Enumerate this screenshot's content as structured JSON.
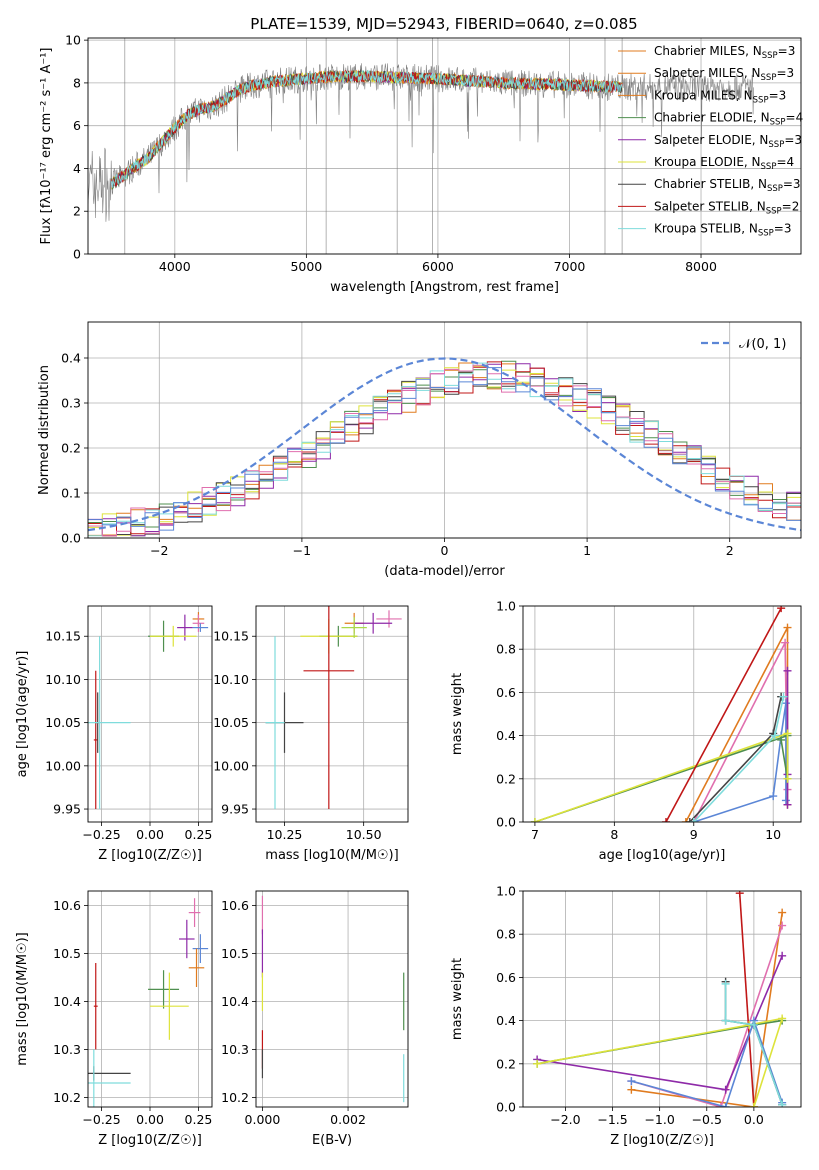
{
  "figure_title": "PLATE=1539, MJD=52943, FIBERID=0640, z=0.085",
  "colors": {
    "grey": "#808080",
    "orange": "#e07b1f",
    "green": "#4f8f4f",
    "purple": "#8e2aa8",
    "yellow": "#dde33b",
    "darkgrey": "#444444",
    "red": "#c01717",
    "cyan": "#7fdcdc",
    "blue": "#5b86d6",
    "pink": "#e06fae",
    "lime": "#a9d94a",
    "dashed": "#5b86d6"
  },
  "chart_data": [
    {
      "id": "spectrum",
      "type": "line",
      "title": "PLATE=1539, MJD=52943, FIBERID=0640, z=0.085",
      "xlabel": "wavelength [Angstrom, rest frame]",
      "ylabel": "Flux [fλ10⁻¹⁷ erg cm⁻² s⁻¹ A⁻¹]",
      "xlim": [
        3340,
        8760
      ],
      "ylim": [
        0,
        10.1
      ],
      "xticks": [
        "4000",
        "5000",
        "6000",
        "7000",
        "8000"
      ],
      "yticks": [
        "0",
        "2",
        "4",
        "6",
        "8",
        "10"
      ],
      "grid": true,
      "legend_position": "upper-right",
      "legend": [
        "Chabrier MILES, N_SSP=3",
        "Salpeter MILES, N_SSP=3",
        "Kroupa MILES, N_SSP=3",
        "Chabrier ELODIE, N_SSP=4",
        "Salpeter ELODIE, N_SSP=3",
        "Kroupa ELODIE, N_SSP=4",
        "Chabrier STELIB, N_SSP=3",
        "Salpeter STELIB, N_SSP=2",
        "Kroupa STELIB, N_SSP=3"
      ],
      "legend_display": [
        [
          "Chabrier MILES, N",
          "SSP",
          "=3"
        ],
        [
          "Salpeter MILES, N",
          "SSP",
          "=3"
        ],
        [
          "Kroupa MILES, N",
          "SSP",
          "=3"
        ],
        [
          "Chabrier ELODIE, N",
          "SSP",
          "=4"
        ],
        [
          "Salpeter ELODIE, N",
          "SSP",
          "=3"
        ],
        [
          "Kroupa ELODIE, N",
          "SSP",
          "=4"
        ],
        [
          "Chabrier STELIB, N",
          "SSP",
          "=3"
        ],
        [
          "Salpeter STELIB, N",
          "SSP",
          "=2"
        ],
        [
          "Kroupa STELIB, N",
          "SSP",
          "=3"
        ]
      ],
      "legend_colors": [
        "orange",
        "orange",
        "orange",
        "green",
        "purple",
        "yellow",
        "darkgrey",
        "red",
        "cyan"
      ],
      "continuum": {
        "x": [
          3520,
          3600,
          3700,
          3800,
          3900,
          4000,
          4100,
          4200,
          4300,
          4400,
          4500,
          4600,
          4800,
          5000,
          5200,
          5500,
          6000,
          6500,
          7000,
          7400
        ],
        "y": [
          3.3,
          3.6,
          4.1,
          4.5,
          5.2,
          5.9,
          6.5,
          6.8,
          6.9,
          7.3,
          7.7,
          7.9,
          8.1,
          8.2,
          8.3,
          8.3,
          8.2,
          8.0,
          7.9,
          7.8
        ]
      },
      "data_range": [
        3340,
        8400
      ],
      "model_range": [
        3520,
        7400
      ]
    },
    {
      "id": "residuals",
      "type": "histogram",
      "xlabel": "(data-model)/error",
      "ylabel": "Normed distribution",
      "xlim": [
        -2.5,
        2.5
      ],
      "ylim": [
        0,
        0.48
      ],
      "xticks": [
        "−2",
        "−1",
        "0",
        "1",
        "2"
      ],
      "yticks": [
        "0.0",
        "0.1",
        "0.2",
        "0.3",
        "0.4"
      ],
      "grid": true,
      "legend_position": "upper-right",
      "legend": [
        "𝒩(0, 1)"
      ],
      "bin_width": 0.1,
      "normal_curve": {
        "mean": 0,
        "sigma": 1
      }
    },
    {
      "id": "age-vs-Z",
      "type": "scatter",
      "xlabel": "Z [log10(Z/Z☉)]",
      "ylabel": "age [log10(age/yr)]",
      "xlim": [
        -0.32,
        0.32
      ],
      "ylim": [
        9.935,
        10.185
      ],
      "xticks": [
        "−0.25",
        "0.00",
        "0.25"
      ],
      "yticks": [
        "9.95",
        "10.00",
        "10.05",
        "10.10",
        "10.15"
      ],
      "grid": true,
      "points": [
        {
          "c": "orange",
          "x": 0.25,
          "y": 10.17,
          "ex": 0.03,
          "ey": 0.008
        },
        {
          "c": "pink",
          "x": 0.25,
          "y": 10.165,
          "ex": 0.03,
          "ey": 0.01
        },
        {
          "c": "blue",
          "x": 0.26,
          "y": 10.16,
          "ex": 0.04,
          "ey": 0.005
        },
        {
          "c": "purple",
          "x": 0.18,
          "y": 10.16,
          "ex": 0.04,
          "ey": 0.015
        },
        {
          "c": "green",
          "x": 0.07,
          "y": 10.15,
          "ex": 0.08,
          "ey": 0.018
        },
        {
          "c": "yellow",
          "x": 0.12,
          "y": 10.15,
          "ex": 0.12,
          "ey": 0.012
        },
        {
          "c": "red",
          "x": -0.28,
          "y": 10.03,
          "ex": 0.01,
          "ey": 0.08
        },
        {
          "c": "darkgrey",
          "x": -0.27,
          "y": 10.05,
          "ex": 0.01,
          "ey": 0.035
        },
        {
          "c": "cyan",
          "x": -0.26,
          "y": 10.05,
          "ex": 0.16,
          "ey": 0.1
        }
      ]
    },
    {
      "id": "age-vs-mass",
      "type": "scatter",
      "xlabel": "mass [log10(M/M☉)]",
      "ylabel": "",
      "xlim": [
        10.16,
        10.64
      ],
      "ylim": [
        9.935,
        10.185
      ],
      "xticks": [
        "10.25",
        "10.50"
      ],
      "yticks": [
        "9.95",
        "10.00",
        "10.05",
        "10.10",
        "10.15"
      ],
      "grid": true,
      "points": [
        {
          "c": "orange",
          "x": 10.47,
          "y": 10.165,
          "ex": 0.03,
          "ey": 0.012
        },
        {
          "c": "pink",
          "x": 10.58,
          "y": 10.17,
          "ex": 0.04,
          "ey": 0.01
        },
        {
          "c": "purple",
          "x": 10.53,
          "y": 10.165,
          "ex": 0.06,
          "ey": 0.012
        },
        {
          "c": "green",
          "x": 10.42,
          "y": 10.15,
          "ex": 0.06,
          "ey": 0.012
        },
        {
          "c": "yellow",
          "x": 10.39,
          "y": 10.15,
          "ex": 0.09,
          "ey": 0.02
        },
        {
          "c": "lime",
          "x": 10.47,
          "y": 10.16,
          "ex": 0.04,
          "ey": 0.012
        },
        {
          "c": "red",
          "x": 10.39,
          "y": 10.11,
          "ex": 0.08,
          "ey": 0.16
        },
        {
          "c": "darkgrey",
          "x": 10.25,
          "y": 10.05,
          "ex": 0.06,
          "ey": 0.035
        },
        {
          "c": "cyan",
          "x": 10.22,
          "y": 10.05,
          "ex": 0.03,
          "ey": 0.1
        }
      ]
    },
    {
      "id": "weight-vs-age",
      "type": "line",
      "xlabel": "age [log10(age/yr)]",
      "ylabel": "mass weight",
      "xlim": [
        6.85,
        10.35
      ],
      "ylim": [
        0,
        1
      ],
      "xticks": [
        "7",
        "8",
        "9",
        "10"
      ],
      "yticks": [
        "0.0",
        "0.2",
        "0.4",
        "0.6",
        "0.8",
        "1.0"
      ],
      "grid": true,
      "series": [
        {
          "c": "orange",
          "x": [
            8.9,
            10.18,
            10.18
          ],
          "y": [
            0.0,
            0.9,
            0.08
          ]
        },
        {
          "c": "pink",
          "x": [
            9.0,
            10.15,
            10.18
          ],
          "y": [
            0.0,
            0.83,
            0.15
          ]
        },
        {
          "c": "blue",
          "x": [
            9.0,
            10.0,
            10.1,
            10.16,
            10.16
          ],
          "y": [
            0.0,
            0.12,
            0.4,
            0.55,
            0.1
          ]
        },
        {
          "c": "purple",
          "x": [
            10.18,
            10.18,
            10.18
          ],
          "y": [
            0.08,
            0.7,
            0.22
          ]
        },
        {
          "c": "green",
          "x": [
            7.0,
            10.18,
            10.18,
            10.1
          ],
          "y": [
            0.0,
            0.4,
            0.2,
            0.38
          ]
        },
        {
          "c": "yellow",
          "x": [
            7.0,
            10.18,
            10.18
          ],
          "y": [
            0.0,
            0.41,
            0.2
          ]
        },
        {
          "c": "red",
          "x": [
            8.65,
            10.1
          ],
          "y": [
            0.0,
            0.99
          ]
        },
        {
          "c": "darkgrey",
          "x": [
            8.95,
            10.0,
            10.1
          ],
          "y": [
            0.0,
            0.41,
            0.58
          ]
        },
        {
          "c": "cyan",
          "x": [
            9.0,
            10.02,
            10.13
          ],
          "y": [
            0.0,
            0.4,
            0.58
          ]
        }
      ]
    },
    {
      "id": "mass-vs-Z",
      "type": "scatter",
      "xlabel": "Z [log10(Z/Z☉)]",
      "ylabel": "mass [log10(M/M☉)]",
      "xlim": [
        -0.32,
        0.32
      ],
      "ylim": [
        10.18,
        10.63
      ],
      "xticks": [
        "−0.25",
        "0.00",
        "0.25"
      ],
      "yticks": [
        "10.2",
        "10.3",
        "10.4",
        "10.5",
        "10.6"
      ],
      "grid": true,
      "points": [
        {
          "c": "pink",
          "x": 0.23,
          "y": 10.585,
          "ex": 0.03,
          "ey": 0.03
        },
        {
          "c": "purple",
          "x": 0.19,
          "y": 10.53,
          "ex": 0.04,
          "ey": 0.04
        },
        {
          "c": "blue",
          "x": 0.26,
          "y": 10.51,
          "ex": 0.04,
          "ey": 0.03
        },
        {
          "c": "orange",
          "x": 0.24,
          "y": 10.47,
          "ex": 0.04,
          "ey": 0.04
        },
        {
          "c": "green",
          "x": 0.07,
          "y": 10.425,
          "ex": 0.08,
          "ey": 0.04
        },
        {
          "c": "yellow",
          "x": 0.1,
          "y": 10.39,
          "ex": 0.1,
          "ey": 0.07
        },
        {
          "c": "red",
          "x": -0.28,
          "y": 10.39,
          "ex": 0.01,
          "ey": 0.09
        },
        {
          "c": "darkgrey",
          "x": -0.29,
          "y": 10.25,
          "ex": 0.19,
          "ey": 0.015
        },
        {
          "c": "cyan",
          "x": -0.29,
          "y": 10.23,
          "ex": 0.19,
          "ey": 0.07
        }
      ]
    },
    {
      "id": "mass-vs-EBV",
      "type": "scatter",
      "xlabel": "E(B-V)",
      "ylabel": "",
      "xlim": [
        -0.00015,
        0.0034
      ],
      "ylim": [
        10.18,
        10.63
      ],
      "xticks": [
        "0.000",
        "0.002"
      ],
      "yticks": [
        "10.2",
        "10.3",
        "10.4",
        "10.5",
        "10.6"
      ],
      "grid": true,
      "points": [
        {
          "c": "pink",
          "x": 0.0,
          "y": 10.58,
          "ex": 0,
          "ey": 0.04
        },
        {
          "c": "purple",
          "x": 0.0,
          "y": 10.5,
          "ex": 0,
          "ey": 0.05
        },
        {
          "c": "yellow",
          "x": 0.0,
          "y": 10.42,
          "ex": 0,
          "ey": 0.04
        },
        {
          "c": "red",
          "x": 0.0,
          "y": 10.3,
          "ex": 0,
          "ey": 0.04
        },
        {
          "c": "darkgrey",
          "x": 0.0,
          "y": 10.27,
          "ex": 0,
          "ey": 0.03
        },
        {
          "c": "green",
          "x": 0.0033,
          "y": 10.4,
          "ex": 0,
          "ey": 0.06
        },
        {
          "c": "cyan",
          "x": 0.0033,
          "y": 10.24,
          "ex": 0,
          "ey": 0.05
        }
      ]
    },
    {
      "id": "weight-vs-Z",
      "type": "line",
      "xlabel": "Z [log10(Z/Z☉)]",
      "ylabel": "mass weight",
      "xlim": [
        -2.45,
        0.5
      ],
      "ylim": [
        0,
        1
      ],
      "xticks": [
        "−2.0",
        "−1.5",
        "−1.0",
        "−0.5",
        "0.0"
      ],
      "yticks": [
        "0.0",
        "0.2",
        "0.4",
        "0.6",
        "0.8",
        "1.0"
      ],
      "grid": true,
      "series": [
        {
          "c": "red",
          "x": [
            -0.15,
            0.0
          ],
          "y": [
            0.99,
            0.0
          ]
        },
        {
          "c": "orange",
          "x": [
            -1.3,
            0.0,
            0.3
          ],
          "y": [
            0.08,
            0.0,
            0.9
          ]
        },
        {
          "c": "pink",
          "x": [
            -1.3,
            -0.35,
            0.3
          ],
          "y": [
            0.12,
            0.0,
            0.84
          ]
        },
        {
          "c": "purple",
          "x": [
            -2.3,
            -0.3,
            0.3
          ],
          "y": [
            0.22,
            0.08,
            0.7
          ]
        },
        {
          "c": "green",
          "x": [
            -2.3,
            0.0,
            0.3
          ],
          "y": [
            0.2,
            0.38,
            0.4
          ]
        },
        {
          "c": "yellow",
          "x": [
            -2.3,
            -0.05,
            0.3,
            0.0
          ],
          "y": [
            0.2,
            0.38,
            0.41,
            0.0
          ]
        },
        {
          "c": "blue",
          "x": [
            -1.3,
            -0.3,
            0.0,
            0.3
          ],
          "y": [
            0.12,
            0.0,
            0.4,
            0.02
          ]
        },
        {
          "c": "darkgrey",
          "x": [
            -0.3,
            -0.3,
            0.0,
            0.3
          ],
          "y": [
            0.58,
            0.4,
            0.38,
            0.01
          ]
        },
        {
          "c": "cyan",
          "x": [
            -0.3,
            -0.3,
            0.0,
            0.3
          ],
          "y": [
            0.57,
            0.4,
            0.38,
            0.01
          ]
        }
      ]
    }
  ]
}
